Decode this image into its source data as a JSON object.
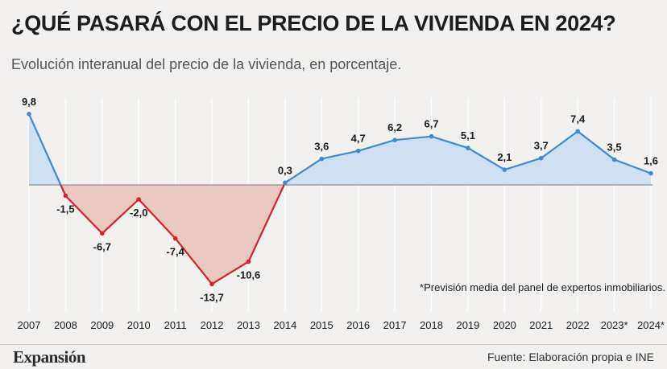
{
  "header": {
    "title": "¿QUÉ PASARÁ CON EL PRECIO DE LA VIVIENDA EN 2024?",
    "subtitle": "Evolución interanual del precio de la vivienda, en porcentaje."
  },
  "footer": {
    "brand": "Expansión",
    "source": "Fuente: Elaboración propia e INE"
  },
  "colors": {
    "positive_line": "#3d8bd4",
    "positive_fill": "#cfe0f2",
    "negative_line": "#d6232a",
    "negative_fill": "#ebc9c1",
    "gridline": "#ffffff",
    "zero_line": "#777777"
  },
  "chart_data": {
    "type": "area",
    "categories": [
      "2007",
      "2008",
      "2009",
      "2010",
      "2011",
      "2012",
      "2013",
      "2014",
      "2015",
      "2016",
      "2017",
      "2018",
      "2019",
      "2020",
      "2021",
      "2022",
      "2023*",
      "2024*"
    ],
    "values": [
      9.8,
      -1.5,
      -6.7,
      -2.0,
      -7.4,
      -13.7,
      -10.6,
      0.3,
      3.6,
      4.7,
      6.2,
      6.7,
      5.1,
      2.1,
      3.7,
      7.4,
      3.5,
      1.6
    ],
    "value_labels": [
      "9,8",
      "-1,5",
      "-6,7",
      "-2,0",
      "-7,4",
      "-13,7",
      "-10,6",
      "0,3",
      "3,6",
      "4,7",
      "6,2",
      "6,7",
      "5,1",
      "2,1",
      "3,7",
      "7,4",
      "3,5",
      "1,6"
    ],
    "annotation": "*Previsión media del panel de expertos inmobiliarios.",
    "ylim": [
      -16,
      12
    ],
    "grid": "vertical",
    "legend": "none"
  }
}
